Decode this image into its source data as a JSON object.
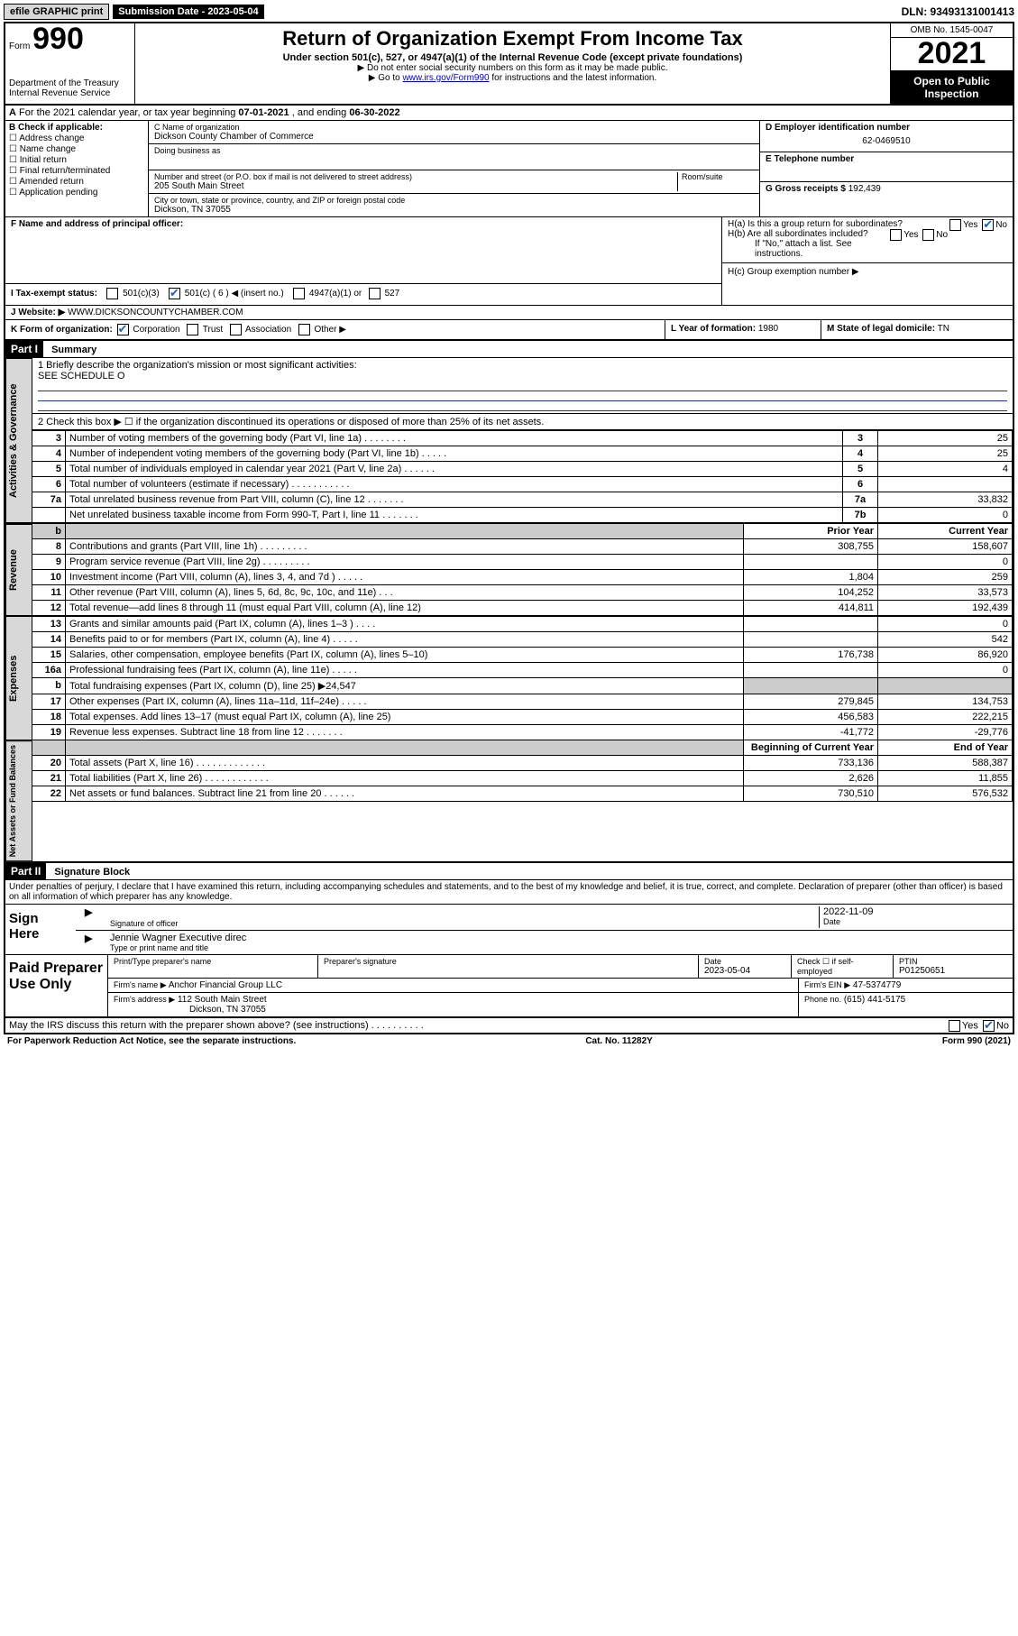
{
  "topbar": {
    "efile": "efile GRAPHIC print",
    "sub_label": "Submission Date - 2023-05-04",
    "dln": "DLN: 93493131001413"
  },
  "header": {
    "form_word": "Form",
    "form_num": "990",
    "title": "Return of Organization Exempt From Income Tax",
    "subtitle": "Under section 501(c), 527, or 4947(a)(1) of the Internal Revenue Code (except private foundations)",
    "note1": "▶ Do not enter social security numbers on this form as it may be made public.",
    "note2_pre": "▶ Go to ",
    "note2_link": "www.irs.gov/Form990",
    "note2_post": " for instructions and the latest information.",
    "dept": "Department of the Treasury",
    "irs": "Internal Revenue Service",
    "omb": "OMB No. 1545-0047",
    "year": "2021",
    "open": "Open to Public Inspection"
  },
  "rowA": {
    "text_pre": "For the 2021 calendar year, or tax year beginning ",
    "begin": "07-01-2021",
    "mid": " , and ending ",
    "end": "06-30-2022"
  },
  "boxB": {
    "title": "B Check if applicable:",
    "opts": [
      "Address change",
      "Name change",
      "Initial return",
      "Final return/terminated",
      "Amended return",
      "Application pending"
    ]
  },
  "boxC": {
    "label": "C Name of organization",
    "name": "Dickson County Chamber of Commerce",
    "dba_label": "Doing business as",
    "dba": "",
    "street_label": "Number and street (or P.O. box if mail is not delivered to street address)",
    "street": "205 South Main Street",
    "room_label": "Room/suite",
    "city_label": "City or town, state or province, country, and ZIP or foreign postal code",
    "city": "Dickson, TN  37055"
  },
  "boxD": {
    "label": "D Employer identification number",
    "value": "62-0469510"
  },
  "boxE": {
    "label": "E Telephone number",
    "value": ""
  },
  "boxG": {
    "label": "G Gross receipts $",
    "value": "192,439"
  },
  "boxF": {
    "label": "F  Name and address of principal officer:",
    "value": ""
  },
  "boxH": {
    "ha": "H(a)  Is this a group return for subordinates?",
    "hb": "H(b)  Are all subordinates included?",
    "hb_note": "If \"No,\" attach a list. See instructions.",
    "hc": "H(c)  Group exemption number ▶",
    "yes": "Yes",
    "no": "No"
  },
  "rowI": {
    "label": "I  Tax-exempt status:",
    "o1": "501(c)(3)",
    "o2": "501(c) ( 6 ) ◀ (insert no.)",
    "o3": "4947(a)(1) or",
    "o4": "527"
  },
  "rowJ": {
    "label": "J  Website: ▶",
    "value": "WWW.DICKSONCOUNTYCHAMBER.COM"
  },
  "rowK": {
    "label": "K Form of organization:",
    "o1": "Corporation",
    "o2": "Trust",
    "o3": "Association",
    "o4": "Other ▶"
  },
  "rowL": {
    "label": "L Year of formation:",
    "value": "1980"
  },
  "rowM": {
    "label": "M State of legal domicile:",
    "value": "TN"
  },
  "part1": {
    "header": "Part I",
    "title": "Summary"
  },
  "mission": {
    "q": "1   Briefly describe the organization's mission or most significant activities:",
    "val": "SEE SCHEDULE O"
  },
  "line2": "2   Check this box ▶ ☐  if the organization discontinued its operations or disposed of more than 25% of its net assets.",
  "governance_label": "Activities & Governance",
  "revenue_label": "Revenue",
  "expenses_label": "Expenses",
  "netassets_label": "Net Assets or Fund Balances",
  "lines_top": [
    {
      "n": "3",
      "t": "Number of voting members of the governing body (Part VI, line 1a)   .    .    .    .    .    .    .    .",
      "c": "3",
      "v": "25"
    },
    {
      "n": "4",
      "t": "Number of independent voting members of the governing body (Part VI, line 1b)   .    .    .    .    .",
      "c": "4",
      "v": "25"
    },
    {
      "n": "5",
      "t": "Total number of individuals employed in calendar year 2021 (Part V, line 2a)    .    .    .    .    .    .",
      "c": "5",
      "v": "4"
    },
    {
      "n": "6",
      "t": "Total number of volunteers (estimate if necessary)    .    .    .    .    .    .    .    .    .    .    .",
      "c": "6",
      "v": ""
    },
    {
      "n": "7a",
      "t": "Total unrelated business revenue from Part VIII, column (C), line 12    .    .    .    .    .    .    .",
      "c": "7a",
      "v": "33,832"
    },
    {
      "n": "",
      "t": "Net unrelated business taxable income from Form 990-T, Part I, line 11    .    .    .    .    .    .    .",
      "c": "7b",
      "v": "0"
    }
  ],
  "col_headers": {
    "b": "b",
    "prior": "Prior Year",
    "current": "Current Year",
    "boy": "Beginning of Current Year",
    "eoy": "End of Year"
  },
  "lines_rev": [
    {
      "n": "8",
      "t": "Contributions and grants (Part VIII, line 1h)    .    .    .    .    .    .    .    .    .",
      "p": "308,755",
      "c": "158,607"
    },
    {
      "n": "9",
      "t": "Program service revenue (Part VIII, line 2g)    .    .    .    .    .    .    .    .    .",
      "p": "",
      "c": "0"
    },
    {
      "n": "10",
      "t": "Investment income (Part VIII, column (A), lines 3, 4, and 7d )    .    .    .    .    .",
      "p": "1,804",
      "c": "259"
    },
    {
      "n": "11",
      "t": "Other revenue (Part VIII, column (A), lines 5, 6d, 8c, 9c, 10c, and 11e)    .    .    .",
      "p": "104,252",
      "c": "33,573"
    },
    {
      "n": "12",
      "t": "Total revenue—add lines 8 through 11 (must equal Part VIII, column (A), line 12)",
      "p": "414,811",
      "c": "192,439"
    }
  ],
  "lines_exp": [
    {
      "n": "13",
      "t": "Grants and similar amounts paid (Part IX, column (A), lines 1–3 )    .    .    .    .",
      "p": "",
      "c": "0"
    },
    {
      "n": "14",
      "t": "Benefits paid to or for members (Part IX, column (A), line 4)    .    .    .    .    .",
      "p": "",
      "c": "542"
    },
    {
      "n": "15",
      "t": "Salaries, other compensation, employee benefits (Part IX, column (A), lines 5–10)",
      "p": "176,738",
      "c": "86,920"
    },
    {
      "n": "16a",
      "t": "Professional fundraising fees (Part IX, column (A), line 11e)    .    .    .    .    .",
      "p": "",
      "c": "0"
    },
    {
      "n": "b",
      "t": "Total fundraising expenses (Part IX, column (D), line 25) ▶24,547",
      "p": "shade",
      "c": "shade"
    },
    {
      "n": "17",
      "t": "Other expenses (Part IX, column (A), lines 11a–11d, 11f–24e)    .    .    .    .    .",
      "p": "279,845",
      "c": "134,753"
    },
    {
      "n": "18",
      "t": "Total expenses. Add lines 13–17 (must equal Part IX, column (A), line 25)",
      "p": "456,583",
      "c": "222,215"
    },
    {
      "n": "19",
      "t": "Revenue less expenses. Subtract line 18 from line 12    .    .    .    .    .    .    .",
      "p": "-41,772",
      "c": "-29,776"
    }
  ],
  "lines_net": [
    {
      "n": "20",
      "t": "Total assets (Part X, line 16)    .    .    .    .    .    .    .    .    .    .    .    .    .",
      "p": "733,136",
      "c": "588,387"
    },
    {
      "n": "21",
      "t": "Total liabilities (Part X, line 26)    .    .    .    .    .    .    .    .    .    .    .    .",
      "p": "2,626",
      "c": "11,855"
    },
    {
      "n": "22",
      "t": "Net assets or fund balances. Subtract line 21 from line 20    .    .    .    .    .    .",
      "p": "730,510",
      "c": "576,532"
    }
  ],
  "part2": {
    "header": "Part II",
    "title": "Signature Block"
  },
  "penalties": "Under penalties of perjury, I declare that I have examined this return, including accompanying schedules and statements, and to the best of my knowledge and belief, it is true, correct, and complete. Declaration of preparer (other than officer) is based on all information of which preparer has any knowledge.",
  "sign": {
    "label": "Sign Here",
    "sig_of_officer": "Signature of officer",
    "date": "Date",
    "date_val": "2022-11-09",
    "name": "Jennie Wagner  Executive direc",
    "name_label": "Type or print name and title"
  },
  "paid": {
    "label": "Paid Preparer Use Only",
    "h1": "Print/Type preparer's name",
    "h2": "Preparer's signature",
    "h3": "Date",
    "h3v": "2023-05-04",
    "h4": "Check ☐ if self-employed",
    "h5": "PTIN",
    "h5v": "P01250651",
    "firm_name_l": "Firm's name    ▶",
    "firm_name": "Anchor Financial Group LLC",
    "firm_ein_l": "Firm's EIN ▶",
    "firm_ein": "47-5374779",
    "firm_addr_l": "Firm's address ▶",
    "firm_addr1": "112 South Main Street",
    "firm_addr2": "Dickson, TN  37055",
    "phone_l": "Phone no.",
    "phone": "(615) 441-5175"
  },
  "discuss": "May the IRS discuss this return with the preparer shown above? (see instructions)    .    .    .    .    .    .    .    .    .    .",
  "footer": {
    "l": "For Paperwork Reduction Act Notice, see the separate instructions.",
    "m": "Cat. No. 11282Y",
    "r": "Form 990 (2021)"
  }
}
